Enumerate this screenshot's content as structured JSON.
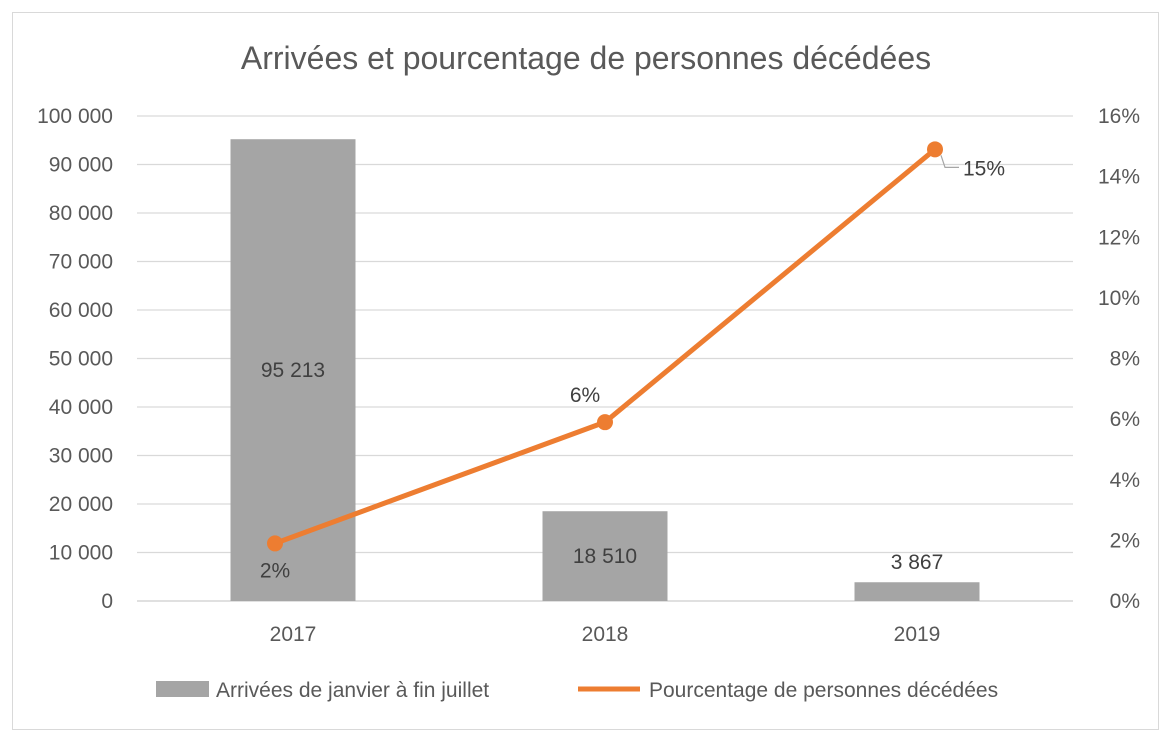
{
  "chart_data": {
    "type": "bar+line",
    "title": "Arrivées et pourcentage de personnes décédées",
    "categories": [
      "2017",
      "2018",
      "2019"
    ],
    "series": [
      {
        "name": "Arrivées de janvier à fin juillet",
        "type": "bar",
        "axis": "left",
        "values": [
          95213,
          18510,
          3867
        ],
        "labels": [
          "95 213",
          "18 510",
          "3 867"
        ],
        "color": "#a5a5a5"
      },
      {
        "name": "Pourcentage de personnes décédées",
        "type": "line",
        "axis": "right",
        "values": [
          1.9,
          5.9,
          14.9
        ],
        "labels": [
          "2%",
          "6%",
          "15%"
        ],
        "color": "#ed7d31"
      }
    ],
    "y_left": {
      "min": 0,
      "max": 100000,
      "step": 10000,
      "tick_labels": [
        "0",
        "10 000",
        "20 000",
        "30 000",
        "40 000",
        "50 000",
        "60 000",
        "70 000",
        "80 000",
        "90 000",
        "100 000"
      ]
    },
    "y_right": {
      "min": 0,
      "max": 16,
      "step": 2,
      "tick_labels": [
        "0%",
        "2%",
        "4%",
        "6%",
        "8%",
        "10%",
        "12%",
        "14%",
        "16%"
      ]
    },
    "grid": true,
    "legend_position": "bottom"
  }
}
